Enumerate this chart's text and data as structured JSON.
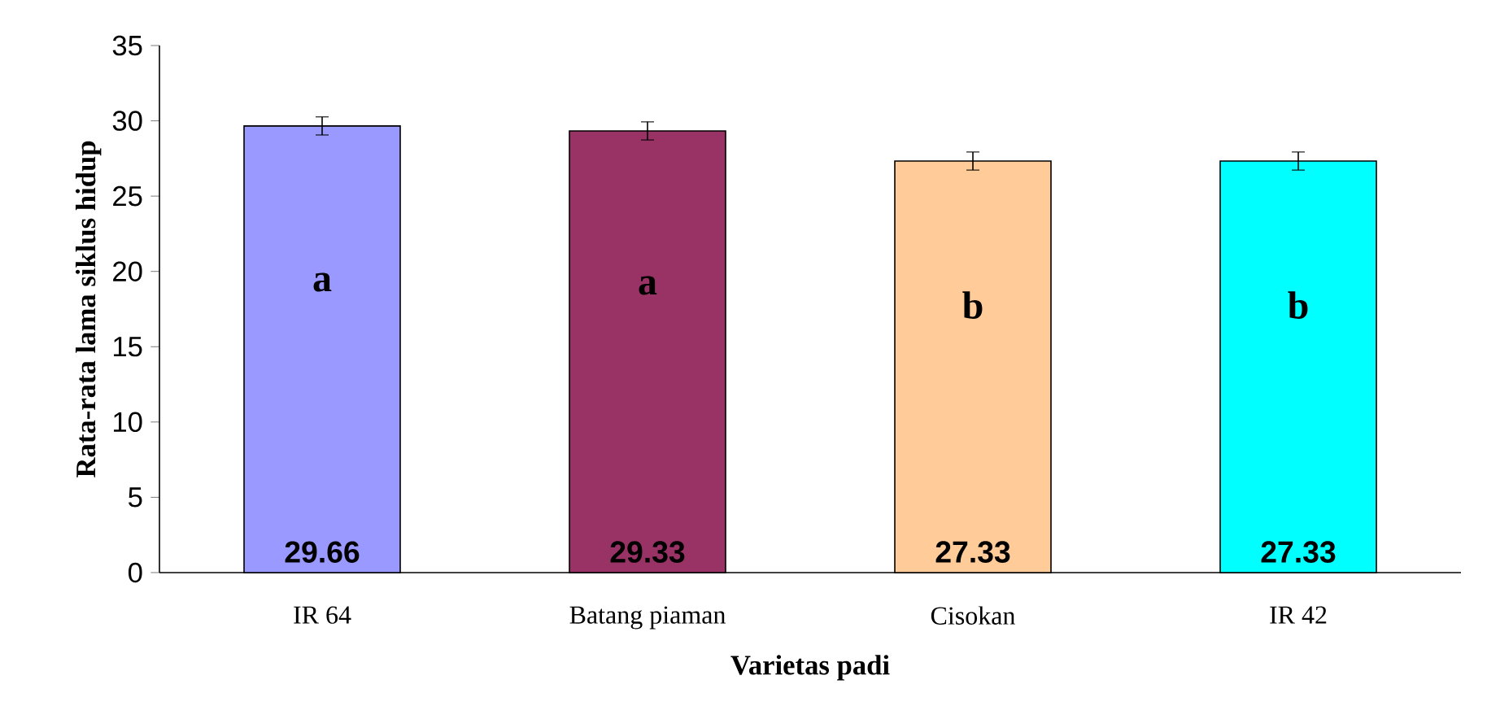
{
  "chart_data": {
    "type": "bar",
    "xlabel": "Varietas padi",
    "ylabel": "Rata-rata lama siklus hidup",
    "categories": [
      "IR 64",
      "Batang piaman",
      "Cisokan",
      "IR 42"
    ],
    "values": [
      29.66,
      29.33,
      27.33,
      27.33
    ],
    "errors": [
      0.6,
      0.6,
      0.6,
      0.6
    ],
    "colors": [
      "#9999ff",
      "#993366",
      "#ffcc99",
      "#00ffff"
    ],
    "ylim": [
      0,
      35
    ],
    "yticks": [
      0,
      5,
      10,
      15,
      20,
      25,
      30,
      35
    ],
    "data_labels": true,
    "grid": false,
    "annotations": [
      "a",
      "a",
      "b",
      "b"
    ]
  }
}
